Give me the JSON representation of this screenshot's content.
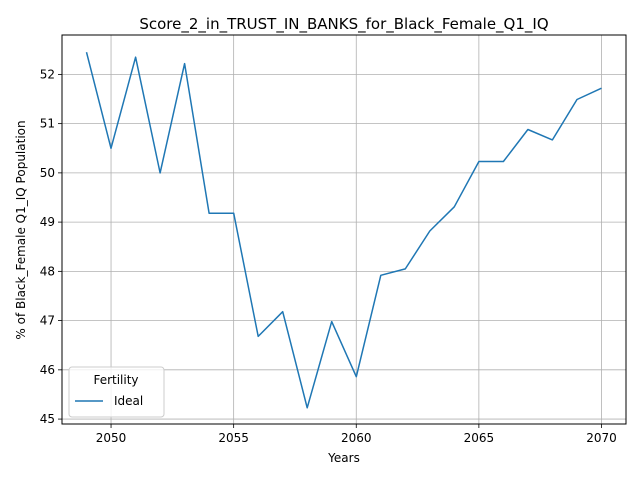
{
  "chart_data": {
    "type": "line",
    "title": "Score_2_in_TRUST_IN_BANKS_for_Black_Female_Q1_IQ",
    "xlabel": "Years",
    "ylabel": "% of Black_Female Q1_IQ Population",
    "xlim": [
      2048,
      2071
    ],
    "ylim": [
      44.9,
      52.8
    ],
    "xticks": [
      2050,
      2055,
      2060,
      2065,
      2070
    ],
    "yticks": [
      45,
      46,
      47,
      48,
      49,
      50,
      51,
      52
    ],
    "grid": true,
    "legend": {
      "title": "Fertility",
      "position": "lower-left"
    },
    "series": [
      {
        "name": "Ideal",
        "color": "#1f77b4",
        "x": [
          2049,
          2050,
          2051,
          2052,
          2053,
          2054,
          2055,
          2056,
          2057,
          2058,
          2059,
          2060,
          2061,
          2062,
          2063,
          2064,
          2065,
          2066,
          2067,
          2068,
          2069,
          2070
        ],
        "y": [
          52.45,
          50.5,
          52.35,
          50.0,
          52.22,
          49.18,
          49.18,
          46.68,
          47.18,
          45.23,
          46.98,
          45.86,
          47.92,
          48.05,
          48.82,
          49.31,
          50.23,
          50.23,
          50.88,
          50.67,
          51.49,
          51.72
        ]
      }
    ]
  }
}
